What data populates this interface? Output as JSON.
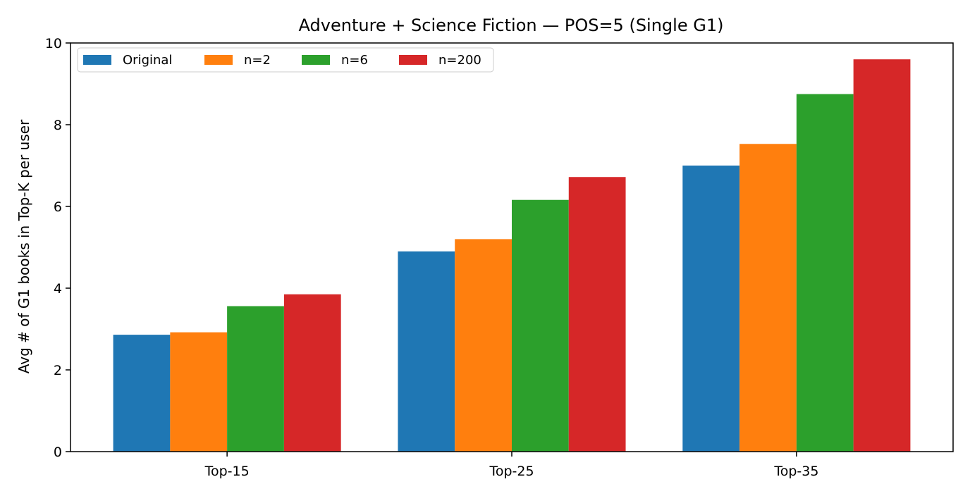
{
  "chart_data": {
    "type": "bar",
    "title": "Adventure + Science Fiction — POS=5 (Single G1)",
    "xlabel": "",
    "ylabel": "Avg # of G1 books in Top-K per user",
    "categories": [
      "Top-15",
      "Top-25",
      "Top-35"
    ],
    "series": [
      {
        "name": "Original",
        "color": "#1f77b4",
        "values": [
          2.86,
          4.9,
          7.0
        ]
      },
      {
        "name": "n=2",
        "color": "#ff7f0e",
        "values": [
          2.92,
          5.2,
          7.53
        ]
      },
      {
        "name": "n=6",
        "color": "#2ca02c",
        "values": [
          3.56,
          6.16,
          8.75
        ]
      },
      {
        "name": "n=200",
        "color": "#d62728",
        "values": [
          3.85,
          6.72,
          9.6
        ]
      }
    ],
    "ylim": [
      0,
      10
    ],
    "yticks": [
      0,
      2,
      4,
      6,
      8,
      10
    ],
    "grid": false,
    "legend_position": "top-left"
  }
}
